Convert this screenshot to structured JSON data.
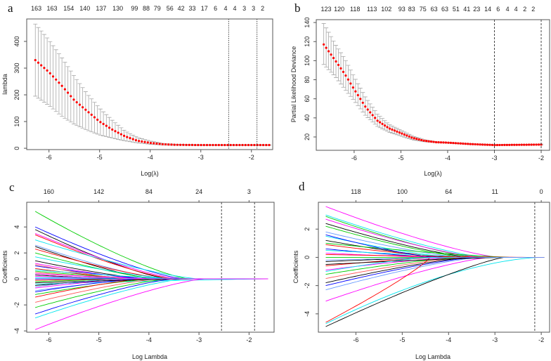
{
  "chart_data": [
    {
      "panel": "a",
      "type": "scatter",
      "subtype": "cross-validation curve with error bars",
      "xlabel": "Log(λ)",
      "ylabel": "lambda",
      "xticks": [
        -6,
        -5,
        -4,
        -3,
        -2
      ],
      "yticks": [
        0,
        100,
        200,
        300,
        400
      ],
      "xlim": [
        -6.44,
        -1.58
      ],
      "ylim": [
        -5,
        484
      ],
      "vlines": [
        -2.45,
        -1.89
      ],
      "top_labels": [
        {
          "x": -6.25,
          "label": "163"
        },
        {
          "x": -5.94,
          "label": "163"
        },
        {
          "x": -5.61,
          "label": "154"
        },
        {
          "x": -5.29,
          "label": "140"
        },
        {
          "x": -4.97,
          "label": "137"
        },
        {
          "x": -4.64,
          "label": "130"
        },
        {
          "x": -4.31,
          "label": "99"
        },
        {
          "x": -4.08,
          "label": "88"
        },
        {
          "x": -3.86,
          "label": "79"
        },
        {
          "x": -3.61,
          "label": "56"
        },
        {
          "x": -3.39,
          "label": "42"
        },
        {
          "x": -3.17,
          "label": "33"
        },
        {
          "x": -2.93,
          "label": "17"
        },
        {
          "x": -2.71,
          "label": "6"
        },
        {
          "x": -2.51,
          "label": "4"
        },
        {
          "x": -2.33,
          "label": "4"
        },
        {
          "x": -2.14,
          "label": "3"
        },
        {
          "x": -1.96,
          "label": "3"
        },
        {
          "x": -1.78,
          "label": "2"
        }
      ],
      "n_points": 80,
      "curve": {
        "x": [
          -6.27,
          -6.0,
          -5.75,
          -5.5,
          -5.25,
          -5.0,
          -4.75,
          -4.5,
          -4.25,
          -4.0,
          -3.75,
          -3.5,
          -3.0,
          -1.65
        ],
        "mean": [
          330,
          285,
          235,
          180,
          140,
          100,
          70,
          45,
          28,
          20,
          15,
          13,
          12,
          12
        ],
        "lower": [
          195,
          160,
          120,
          90,
          68,
          50,
          38,
          28,
          20,
          15,
          12,
          11,
          11,
          11
        ],
        "upper": [
          465,
          405,
          340,
          270,
          205,
          150,
          105,
          65,
          40,
          27,
          18,
          15,
          13,
          13
        ]
      }
    },
    {
      "panel": "b",
      "type": "scatter",
      "subtype": "cross-validation curve with error bars",
      "xlabel": "Log(λ)",
      "ylabel": "Partial Likelihood Deviance",
      "xticks": [
        -6,
        -5,
        -4,
        -3,
        -2
      ],
      "yticks": [
        20,
        40,
        60,
        80,
        100,
        120,
        140
      ],
      "xlim": [
        -6.81,
        -1.82
      ],
      "ylim": [
        6,
        143
      ],
      "vlines": [
        -3.0,
        -2.0
      ],
      "top_labels": [
        {
          "x": -6.6,
          "label": "123"
        },
        {
          "x": -6.32,
          "label": "120"
        },
        {
          "x": -5.98,
          "label": "118"
        },
        {
          "x": -5.62,
          "label": "113"
        },
        {
          "x": -5.31,
          "label": "102"
        },
        {
          "x": -4.98,
          "label": "93"
        },
        {
          "x": -4.77,
          "label": "83"
        },
        {
          "x": -4.53,
          "label": "75"
        },
        {
          "x": -4.29,
          "label": "63"
        },
        {
          "x": -4.06,
          "label": "63"
        },
        {
          "x": -3.82,
          "label": "51"
        },
        {
          "x": -3.59,
          "label": "41"
        },
        {
          "x": -3.38,
          "label": "23"
        },
        {
          "x": -3.14,
          "label": "14"
        },
        {
          "x": -2.92,
          "label": "6"
        },
        {
          "x": -2.72,
          "label": "4"
        },
        {
          "x": -2.54,
          "label": "4"
        },
        {
          "x": -2.35,
          "label": "2"
        },
        {
          "x": -2.17,
          "label": "2"
        }
      ],
      "n_points": 90,
      "curve": {
        "x": [
          -6.65,
          -6.4,
          -6.2,
          -6.0,
          -5.75,
          -5.5,
          -5.25,
          -5.0,
          -4.75,
          -4.5,
          -4.25,
          -4.0,
          -3.5,
          -3.0,
          -2.0
        ],
        "mean": [
          117,
          100,
          86,
          70,
          51,
          37,
          29,
          24,
          19,
          16,
          14.5,
          14,
          12.5,
          11.5,
          12
        ],
        "lower": [
          96,
          83,
          70,
          58,
          42,
          31,
          25,
          21,
          17,
          15,
          14,
          13.5,
          12,
          11,
          11.5
        ],
        "upper": [
          139,
          117,
          102,
          83,
          61,
          44,
          33,
          27,
          21,
          17,
          15,
          14.5,
          13,
          12,
          12.5
        ]
      }
    },
    {
      "panel": "c",
      "type": "line",
      "subtype": "coefficient paths",
      "xlabel": "Log Lambda",
      "ylabel": "Coefficients",
      "xticks": [
        -6,
        -5,
        -4,
        -3,
        -2
      ],
      "yticks": [
        -4,
        -2,
        0,
        2,
        4
      ],
      "xlim": [
        -6.44,
        -1.5
      ],
      "ylim": [
        -4.1,
        5.9
      ],
      "vlines": [
        -2.55,
        -1.89
      ],
      "top_labels": [
        {
          "x": -6,
          "label": "160"
        },
        {
          "x": -5,
          "label": "142"
        },
        {
          "x": -4,
          "label": "84"
        },
        {
          "x": -3,
          "label": "24"
        },
        {
          "x": -2,
          "label": "3"
        }
      ],
      "x_start": -6.27,
      "colors": [
        "#000000",
        "#ff0000",
        "#00cd00",
        "#0000ff",
        "#00e5ee",
        "#ff00ff",
        "#6699ff",
        "#ff5555"
      ],
      "paths": [
        [
          5.2,
          -3.2,
          2
        ],
        [
          4.0,
          -3.3,
          3
        ],
        [
          3.8,
          -3.6,
          0
        ],
        [
          3.5,
          -3.4,
          5
        ],
        [
          3.4,
          -3.5,
          1
        ],
        [
          3.0,
          -3.0,
          4
        ],
        [
          2.6,
          -3.7,
          6
        ],
        [
          2.5,
          -3.9,
          0
        ],
        [
          2.3,
          -3.6,
          1
        ],
        [
          2.0,
          -3.8,
          2
        ],
        [
          1.7,
          -3.5,
          4
        ],
        [
          1.4,
          -4.0,
          0
        ],
        [
          1.2,
          -4.1,
          5
        ],
        [
          1.0,
          -3.9,
          3
        ],
        [
          0.8,
          -4.2,
          1
        ],
        [
          0.6,
          -4.0,
          2
        ],
        [
          0.5,
          -4.3,
          7
        ],
        [
          0.3,
          -4.4,
          0
        ],
        [
          0.2,
          -3.5,
          5
        ],
        [
          0.1,
          -1.65,
          4
        ],
        [
          0.0,
          -4.5,
          3
        ],
        [
          -0.1,
          -4.2,
          1
        ],
        [
          -0.2,
          -4.0,
          2
        ],
        [
          -0.4,
          -1.65,
          4
        ],
        [
          -0.5,
          -4.1,
          0
        ],
        [
          -0.7,
          -4.3,
          5
        ],
        [
          -0.9,
          -4.0,
          6
        ],
        [
          -1.0,
          -4.2,
          3
        ],
        [
          -1.2,
          -3.9,
          2
        ],
        [
          -1.4,
          -4.1,
          1
        ],
        [
          -1.8,
          -3.8,
          7
        ],
        [
          -2.2,
          -3.6,
          2
        ],
        [
          -2.7,
          -3.5,
          3
        ],
        [
          -3.0,
          -3.3,
          4
        ],
        [
          -3.9,
          -2.9,
          5
        ],
        [
          0.7,
          -3.3,
          4
        ],
        [
          -0.3,
          -3.1,
          0
        ],
        [
          1.1,
          -4.4,
          7
        ],
        [
          -0.6,
          -4.6,
          6
        ],
        [
          0.4,
          -3.7,
          5
        ]
      ]
    },
    {
      "panel": "d",
      "type": "line",
      "subtype": "coefficient paths",
      "xlabel": "Log Lambda",
      "ylabel": "Coefficients",
      "xticks": [
        -6,
        -5,
        -4,
        -3,
        -2
      ],
      "yticks": [
        -4,
        -2,
        0,
        2
      ],
      "xlim": [
        -6.81,
        -1.82
      ],
      "ylim": [
        -5.3,
        3.9
      ],
      "vlines": [
        -2.14
      ],
      "top_labels": [
        {
          "x": -6,
          "label": "118"
        },
        {
          "x": -5,
          "label": "100"
        },
        {
          "x": -4,
          "label": "64"
        },
        {
          "x": -3,
          "label": "11"
        },
        {
          "x": -2,
          "label": "0"
        }
      ],
      "x_start": -6.65,
      "colors": [
        "#000000",
        "#ff0000",
        "#00cd00",
        "#0000ff",
        "#00e5ee",
        "#ff00ff",
        "#6699ff",
        "#ff5555"
      ],
      "paths": [
        [
          3.6,
          -2.9,
          5,
          1.3
        ],
        [
          3.0,
          -3.2,
          4,
          1.3
        ],
        [
          2.9,
          -3.4,
          2,
          1.3
        ],
        [
          2.7,
          -3.3,
          5,
          1.3
        ],
        [
          2.4,
          -3.5,
          0,
          1.3
        ],
        [
          2.2,
          -3.6,
          2,
          1.3
        ],
        [
          1.8,
          -3.7,
          6,
          1.3
        ],
        [
          1.5,
          -3.9,
          4,
          1.3
        ],
        [
          1.2,
          -4.0,
          0,
          1.3
        ],
        [
          0.9,
          -3.8,
          1,
          1.3
        ],
        [
          0.6,
          -4.1,
          3,
          1.3
        ],
        [
          0.3,
          -4.2,
          5,
          1.3
        ],
        [
          0.0,
          -4.0,
          2,
          1.3
        ],
        [
          -0.3,
          -3.9,
          0,
          1.3
        ],
        [
          -0.6,
          -4.1,
          1,
          1.3
        ],
        [
          -0.9,
          -3.8,
          5,
          1.3
        ],
        [
          -1.2,
          -3.7,
          2,
          1.3
        ],
        [
          -1.5,
          -3.6,
          7,
          1.3
        ],
        [
          -1.8,
          -3.5,
          0,
          1.3
        ],
        [
          -2.0,
          -3.4,
          3,
          1.3
        ],
        [
          -2.3,
          -3.3,
          6,
          1.3
        ],
        [
          -3.1,
          -3.1,
          5,
          1.3
        ],
        [
          -4.6,
          -4.4,
          1,
          0.85
        ],
        [
          -4.7,
          -2.0,
          4,
          1.6
        ],
        [
          -4.9,
          -2.8,
          0,
          1.2
        ],
        [
          1.0,
          -2.6,
          2,
          1.3
        ],
        [
          0.5,
          -3.0,
          4,
          1.3
        ],
        [
          -0.5,
          -2.7,
          0,
          1.3
        ],
        [
          1.6,
          -4.3,
          3,
          1.3
        ],
        [
          -1.0,
          -4.4,
          4,
          1.3
        ],
        [
          0.2,
          -2.2,
          1,
          1.3
        ],
        [
          -0.2,
          -3.6,
          6,
          1.3
        ]
      ]
    }
  ]
}
